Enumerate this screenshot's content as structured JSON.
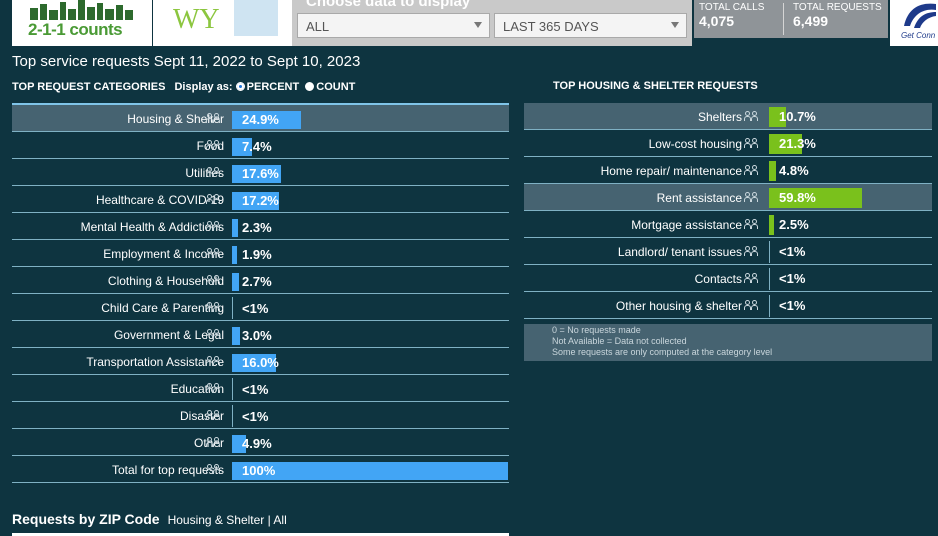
{
  "header": {
    "logo_text": "2-1-1 counts",
    "state": "WY",
    "filter_title": "Choose data to display",
    "filter_area": "ALL",
    "filter_period": "LAST 365 DAYS",
    "total_calls_label": "TOTAL CALLS",
    "total_calls_value": "4,075",
    "total_requests_label": "TOTAL REQUESTS",
    "total_requests_value": "6,499",
    "partner_text": "Get Conn"
  },
  "page_title": "Top service requests Sept 11, 2022 to Sept 10, 2023",
  "left_panel": {
    "title": "TOP REQUEST CATEGORIES",
    "display_as_label": "Display as:",
    "option_percent": "PERCENT",
    "option_count": "COUNT",
    "rows": [
      {
        "label": "Housing & Shelter",
        "value_text": "24.9%",
        "percent": 24.9,
        "highlight": true
      },
      {
        "label": "Food",
        "value_text": "7.4%",
        "percent": 7.4
      },
      {
        "label": "Utilities",
        "value_text": "17.6%",
        "percent": 17.6
      },
      {
        "label": "Healthcare & COVID-19",
        "value_text": "17.2%",
        "percent": 17.2
      },
      {
        "label": "Mental Health & Addictions",
        "value_text": "2.3%",
        "percent": 2.3
      },
      {
        "label": "Employment & Income",
        "value_text": "1.9%",
        "percent": 1.9
      },
      {
        "label": "Clothing & Household",
        "value_text": "2.7%",
        "percent": 2.7
      },
      {
        "label": "Child Care & Parenting",
        "value_text": "<1%",
        "percent": 0
      },
      {
        "label": "Government & Legal",
        "value_text": "3.0%",
        "percent": 3.0
      },
      {
        "label": "Transportation Assistance",
        "value_text": "16.0%",
        "percent": 16.0
      },
      {
        "label": "Education",
        "value_text": "<1%",
        "percent": 0
      },
      {
        "label": "Disaster",
        "value_text": "<1%",
        "percent": 0
      },
      {
        "label": "Other",
        "value_text": "4.9%",
        "percent": 4.9
      },
      {
        "label": "Total for top requests",
        "value_text": "100%",
        "percent": 100
      }
    ]
  },
  "right_panel": {
    "title": "TOP HOUSING & SHELTER REQUESTS",
    "rows": [
      {
        "label": "Shelters",
        "value_text": "10.7%",
        "percent": 10.7,
        "highlight": true
      },
      {
        "label": "Low-cost housing",
        "value_text": "21.3%",
        "percent": 21.3
      },
      {
        "label": "Home repair/ maintenance",
        "value_text": "4.8%",
        "percent": 4.8
      },
      {
        "label": "Rent assistance",
        "value_text": "59.8%",
        "percent": 59.8,
        "highlight": true
      },
      {
        "label": "Mortgage assistance",
        "value_text": "2.5%",
        "percent": 2.5
      },
      {
        "label": "Landlord/ tenant issues",
        "value_text": "<1%",
        "percent": 0
      },
      {
        "label": "Contacts",
        "value_text": "<1%",
        "percent": 0
      },
      {
        "label": "Other housing & shelter",
        "value_text": "<1%",
        "percent": 0
      }
    ],
    "notes": [
      "0 = No requests made",
      "Not Available = Data not collected",
      "Some requests are only computed at the category level"
    ]
  },
  "zip": {
    "title": "Requests by ZIP Code",
    "subtitle": "Housing & Shelter | All"
  },
  "colors": {
    "background": "#0e3440",
    "left_bar": "#42a5f5",
    "right_bar": "#7ac11c",
    "highlight_row": "#466371"
  }
}
